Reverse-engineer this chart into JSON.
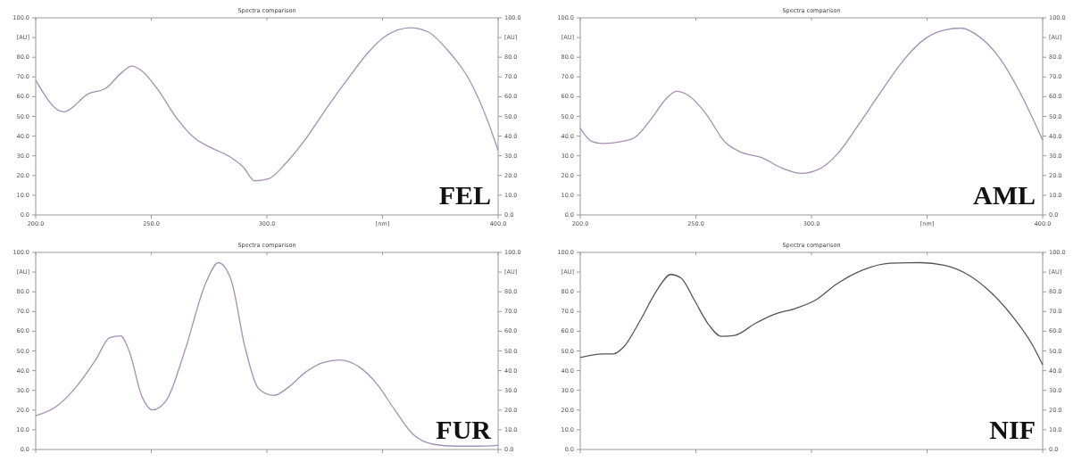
{
  "chart_data": [
    {
      "type": "line",
      "title": "Spectra comparison",
      "annotations": [
        "FEL"
      ],
      "x": [
        200,
        212,
        223,
        230,
        237,
        241.5,
        246,
        253.5,
        261,
        268.7,
        276,
        284,
        290,
        294.7,
        300.8,
        308,
        317,
        326,
        335.9,
        343.5,
        351,
        362,
        369.5,
        378.6,
        387.8,
        395.4,
        400
      ],
      "series": [
        {
          "color": "#a58fb5",
          "values": [
            68.4,
            52.3,
            61.6,
            64,
            72,
            75.5,
            73,
            62.5,
            49,
            39,
            34,
            29.5,
            24,
            17.3,
            18.4,
            26,
            39,
            54.5,
            70.5,
            82,
            90.5,
            95,
            93,
            83,
            68,
            48,
            32.7
          ]
        }
      ],
      "xlim": [
        200,
        400
      ],
      "xticks": [
        {
          "value": 200,
          "label": "200.0"
        },
        {
          "value": 250,
          "label": "250.0"
        },
        {
          "value": 300,
          "label": "300.0"
        },
        {
          "value": 350,
          "label": "[nm]"
        },
        {
          "value": 400,
          "label": "400.0"
        }
      ],
      "ylim": [
        0,
        100
      ],
      "yticks": [
        {
          "value": 0,
          "label": "0.0"
        },
        {
          "value": 10,
          "label": "10.0"
        },
        {
          "value": 20,
          "label": "20.0"
        },
        {
          "value": 30,
          "label": "30.0"
        },
        {
          "value": 40,
          "label": "40.0"
        },
        {
          "value": 50,
          "label": "50.0"
        },
        {
          "value": 60,
          "label": "60.0"
        },
        {
          "value": 70,
          "label": "70.0"
        },
        {
          "value": 80,
          "label": "80.0"
        },
        {
          "value": 90,
          "label": "[AU]"
        },
        {
          "value": 100,
          "label": "100.0"
        }
      ],
      "y2lim": [
        0,
        100
      ],
      "y2ticks": [
        {
          "value": 0,
          "label": "0.0"
        },
        {
          "value": 10,
          "label": "10.0"
        },
        {
          "value": 20,
          "label": "20.0"
        },
        {
          "value": 30,
          "label": "30.0"
        },
        {
          "value": 40,
          "label": "40.0"
        },
        {
          "value": 50,
          "label": "50.0"
        },
        {
          "value": 60,
          "label": "60.0"
        },
        {
          "value": 70,
          "label": "70.0"
        },
        {
          "value": 80,
          "label": "80.0"
        },
        {
          "value": 90,
          "label": "[AU]"
        },
        {
          "value": 100,
          "label": "100.0"
        }
      ]
    },
    {
      "type": "line",
      "title": "Spectra comparison",
      "annotations": [
        "AML"
      ],
      "x": [
        200,
        205,
        209.4,
        218,
        223.7,
        230.9,
        236.7,
        241.7,
        246.8,
        254,
        262.6,
        269.8,
        278.4,
        287,
        295.7,
        302.9,
        311.5,
        320.1,
        328.8,
        338.8,
        348.9,
        357.6,
        364.7,
        371.9,
        380.6,
        390.6,
        400
      ],
      "series": [
        {
          "color": "#a58fb5",
          "values": [
            44,
            37.3,
            36.3,
            37.3,
            39.4,
            49,
            58.4,
            62.7,
            60.6,
            51.9,
            37,
            31.7,
            29.1,
            23.9,
            21.1,
            23,
            31.3,
            45.3,
            60.3,
            77,
            89.2,
            93.8,
            94.8,
            91,
            80.8,
            61.2,
            37.9
          ]
        }
      ],
      "xlim": [
        200,
        400
      ],
      "xticks": [
        {
          "value": 200,
          "label": "200.0"
        },
        {
          "value": 250,
          "label": "250.0"
        },
        {
          "value": 300,
          "label": "300.0"
        },
        {
          "value": 350,
          "label": "[nm]"
        },
        {
          "value": 400,
          "label": "400.0"
        }
      ],
      "ylim": [
        0,
        100
      ],
      "yticks": [
        {
          "value": 0,
          "label": "0.0"
        },
        {
          "value": 10,
          "label": "10.0"
        },
        {
          "value": 20,
          "label": "20.0"
        },
        {
          "value": 30,
          "label": "30.0"
        },
        {
          "value": 40,
          "label": "40.0"
        },
        {
          "value": 50,
          "label": "50.0"
        },
        {
          "value": 60,
          "label": "60.0"
        },
        {
          "value": 70,
          "label": "70.0"
        },
        {
          "value": 80,
          "label": "80.0"
        },
        {
          "value": 90,
          "label": "[AU]"
        },
        {
          "value": 100,
          "label": "100.0"
        }
      ],
      "y2lim": [
        0,
        100
      ],
      "y2ticks": [
        {
          "value": 0,
          "label": "0.0"
        },
        {
          "value": 10,
          "label": "10.0"
        },
        {
          "value": 20,
          "label": "20.0"
        },
        {
          "value": 30,
          "label": "30.0"
        },
        {
          "value": 40,
          "label": "40.0"
        },
        {
          "value": 50,
          "label": "50.0"
        },
        {
          "value": 60,
          "label": "60.0"
        },
        {
          "value": 70,
          "label": "70.0"
        },
        {
          "value": 80,
          "label": "80.0"
        },
        {
          "value": 90,
          "label": "[AU]"
        },
        {
          "value": 100,
          "label": "100.0"
        }
      ]
    },
    {
      "type": "line",
      "title": "Spectra comparison",
      "annotations": [
        "FUR"
      ],
      "tick_labels": "y",
      "x": [
        200,
        208.9,
        216.6,
        225.9,
        232,
        236.7,
        240.5,
        245.9,
        250.5,
        256.7,
        264.4,
        273.6,
        279,
        284.4,
        290.6,
        296.7,
        302.9,
        309.1,
        316.8,
        324.5,
        331.4,
        339.9,
        347.6,
        355.3,
        363,
        372.2,
        381.5,
        390.7,
        400
      ],
      "series": [
        {
          "color": "#a58fb5",
          "values": [
            17.1,
            21.8,
            30.5,
            45.4,
            56.7,
            57.6,
            49.7,
            27,
            20.1,
            25.3,
            49.7,
            84.6,
            94.8,
            86.4,
            51.5,
            30.5,
            27.4,
            31.4,
            39.3,
            44.2,
            45.4,
            41.9,
            33.2,
            20.1,
            7.9,
            2.6,
            1.7,
            1.7,
            2.1
          ]
        }
      ],
      "xlim": [
        200,
        400
      ],
      "xticks": [
        {
          "value": 200,
          "label": null
        },
        {
          "value": 250,
          "label": null
        },
        {
          "value": 300,
          "label": null
        },
        {
          "value": 350,
          "label": null
        },
        {
          "value": 400,
          "label": null
        }
      ],
      "ylim": [
        0,
        100
      ],
      "yticks": [
        {
          "value": 0,
          "label": "0.0"
        },
        {
          "value": 10,
          "label": "10.0"
        },
        {
          "value": 20,
          "label": "20.0"
        },
        {
          "value": 30,
          "label": "30.0"
        },
        {
          "value": 40,
          "label": "40.0"
        },
        {
          "value": 50,
          "label": "50.0"
        },
        {
          "value": 60,
          "label": "60.0"
        },
        {
          "value": 70,
          "label": "70.0"
        },
        {
          "value": 80,
          "label": "80.0"
        },
        {
          "value": 90,
          "label": "[AU]"
        },
        {
          "value": 100,
          "label": "100.0"
        }
      ],
      "y2lim": [
        0,
        100
      ],
      "y2ticks": [
        {
          "value": 0,
          "label": "0.0"
        },
        {
          "value": 10,
          "label": "10.0"
        },
        {
          "value": 20,
          "label": "20.0"
        },
        {
          "value": 30,
          "label": "30.0"
        },
        {
          "value": 40,
          "label": "40.0"
        },
        {
          "value": 50,
          "label": "50.0"
        },
        {
          "value": 60,
          "label": "60.0"
        },
        {
          "value": 70,
          "label": "70.0"
        },
        {
          "value": 80,
          "label": "80.0"
        },
        {
          "value": 90,
          "label": "[AU]"
        },
        {
          "value": 100,
          "label": "100.0"
        }
      ]
    },
    {
      "type": "line",
      "title": "Spectra comparison",
      "annotations": [
        "NIF"
      ],
      "tick_labels": "y",
      "x": [
        200,
        209.9,
        214.3,
        218.7,
        226,
        233.3,
        239.1,
        243.5,
        249.3,
        255.2,
        261,
        266.8,
        275.6,
        284.3,
        293.1,
        301.9,
        310.6,
        322.3,
        334,
        347.1,
        357.3,
        367.5,
        376.3,
        386.5,
        395.3,
        400
      ],
      "series": [
        {
          "color": "#555555",
          "values": [
            46.7,
            48.5,
            48.5,
            51.9,
            65.6,
            81.1,
            88.8,
            87.1,
            75.9,
            63.9,
            57.4,
            57.9,
            63.9,
            68.7,
            71.6,
            75.9,
            83.7,
            91.1,
            94.5,
            94.8,
            93.5,
            88.8,
            81.1,
            68.2,
            53.6,
            43
          ]
        }
      ],
      "xlim": [
        200,
        400
      ],
      "xticks": [
        {
          "value": 200,
          "label": null
        },
        {
          "value": 250,
          "label": null
        },
        {
          "value": 300,
          "label": null
        },
        {
          "value": 350,
          "label": null
        },
        {
          "value": 400,
          "label": null
        }
      ],
      "ylim": [
        0,
        100
      ],
      "yticks": [
        {
          "value": 0,
          "label": "0.0"
        },
        {
          "value": 10,
          "label": "10.0"
        },
        {
          "value": 20,
          "label": "20.0"
        },
        {
          "value": 30,
          "label": "30.0"
        },
        {
          "value": 40,
          "label": "40.0"
        },
        {
          "value": 50,
          "label": "50.0"
        },
        {
          "value": 60,
          "label": "60.0"
        },
        {
          "value": 70,
          "label": "70.0"
        },
        {
          "value": 80,
          "label": "80.0"
        },
        {
          "value": 90,
          "label": "[AU]"
        },
        {
          "value": 100,
          "label": "100.0"
        }
      ],
      "y2lim": [
        0,
        100
      ],
      "y2ticks": [
        {
          "value": 0,
          "label": "0.0"
        },
        {
          "value": 10,
          "label": "10.0"
        },
        {
          "value": 20,
          "label": "20.0"
        },
        {
          "value": 30,
          "label": "30.0"
        },
        {
          "value": 40,
          "label": "40.0"
        },
        {
          "value": 50,
          "label": "50.0"
        },
        {
          "value": 60,
          "label": "60.0"
        },
        {
          "value": 70,
          "label": "70.0"
        },
        {
          "value": 80,
          "label": "80.0"
        },
        {
          "value": 90,
          "label": "[AU]"
        },
        {
          "value": 100,
          "label": "100.0"
        }
      ]
    }
  ]
}
